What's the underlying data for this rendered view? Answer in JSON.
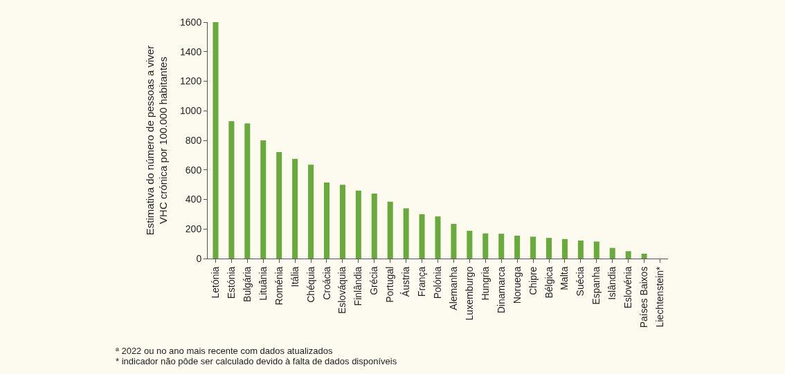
{
  "chart_data": {
    "type": "bar",
    "ylabel": "Estimativa do número de pessoas a viver\nVHC crónica por 100.000 habitantes",
    "categories": [
      "Letónia",
      "Estónia",
      "Bulgária",
      "Lituânia",
      "Roménia",
      "Itália",
      "Chéquia",
      "Croácia",
      "Eslováquia",
      "Finlândia",
      "Grécia",
      "Portugal",
      "Áustria",
      "França",
      "Polónia",
      "Alemanha",
      "Luxemburgo",
      "Hungria",
      "Dinamarca",
      "Noruega",
      "Chipre",
      "Bélgica",
      "Malta",
      "Suécia",
      "Espanha",
      "Islândia",
      "Eslovénia",
      "Países Baixos",
      "Liechtenstein*"
    ],
    "values": [
      1600,
      930,
      915,
      800,
      720,
      675,
      635,
      515,
      500,
      460,
      440,
      385,
      340,
      300,
      285,
      235,
      188,
      170,
      168,
      155,
      148,
      140,
      132,
      122,
      115,
      72,
      50,
      33,
      null
    ],
    "color": "#68ab3c",
    "ylim": [
      0,
      1600
    ],
    "yticks": [
      0,
      200,
      400,
      600,
      800,
      1000,
      1200,
      1400,
      1600
    ],
    "grid": false,
    "annotations": [
      "ª 2022 ou no ano mais recente com dados atualizados",
      "* indicador não pôde ser calculado devido à falta de dados disponíveis"
    ]
  }
}
